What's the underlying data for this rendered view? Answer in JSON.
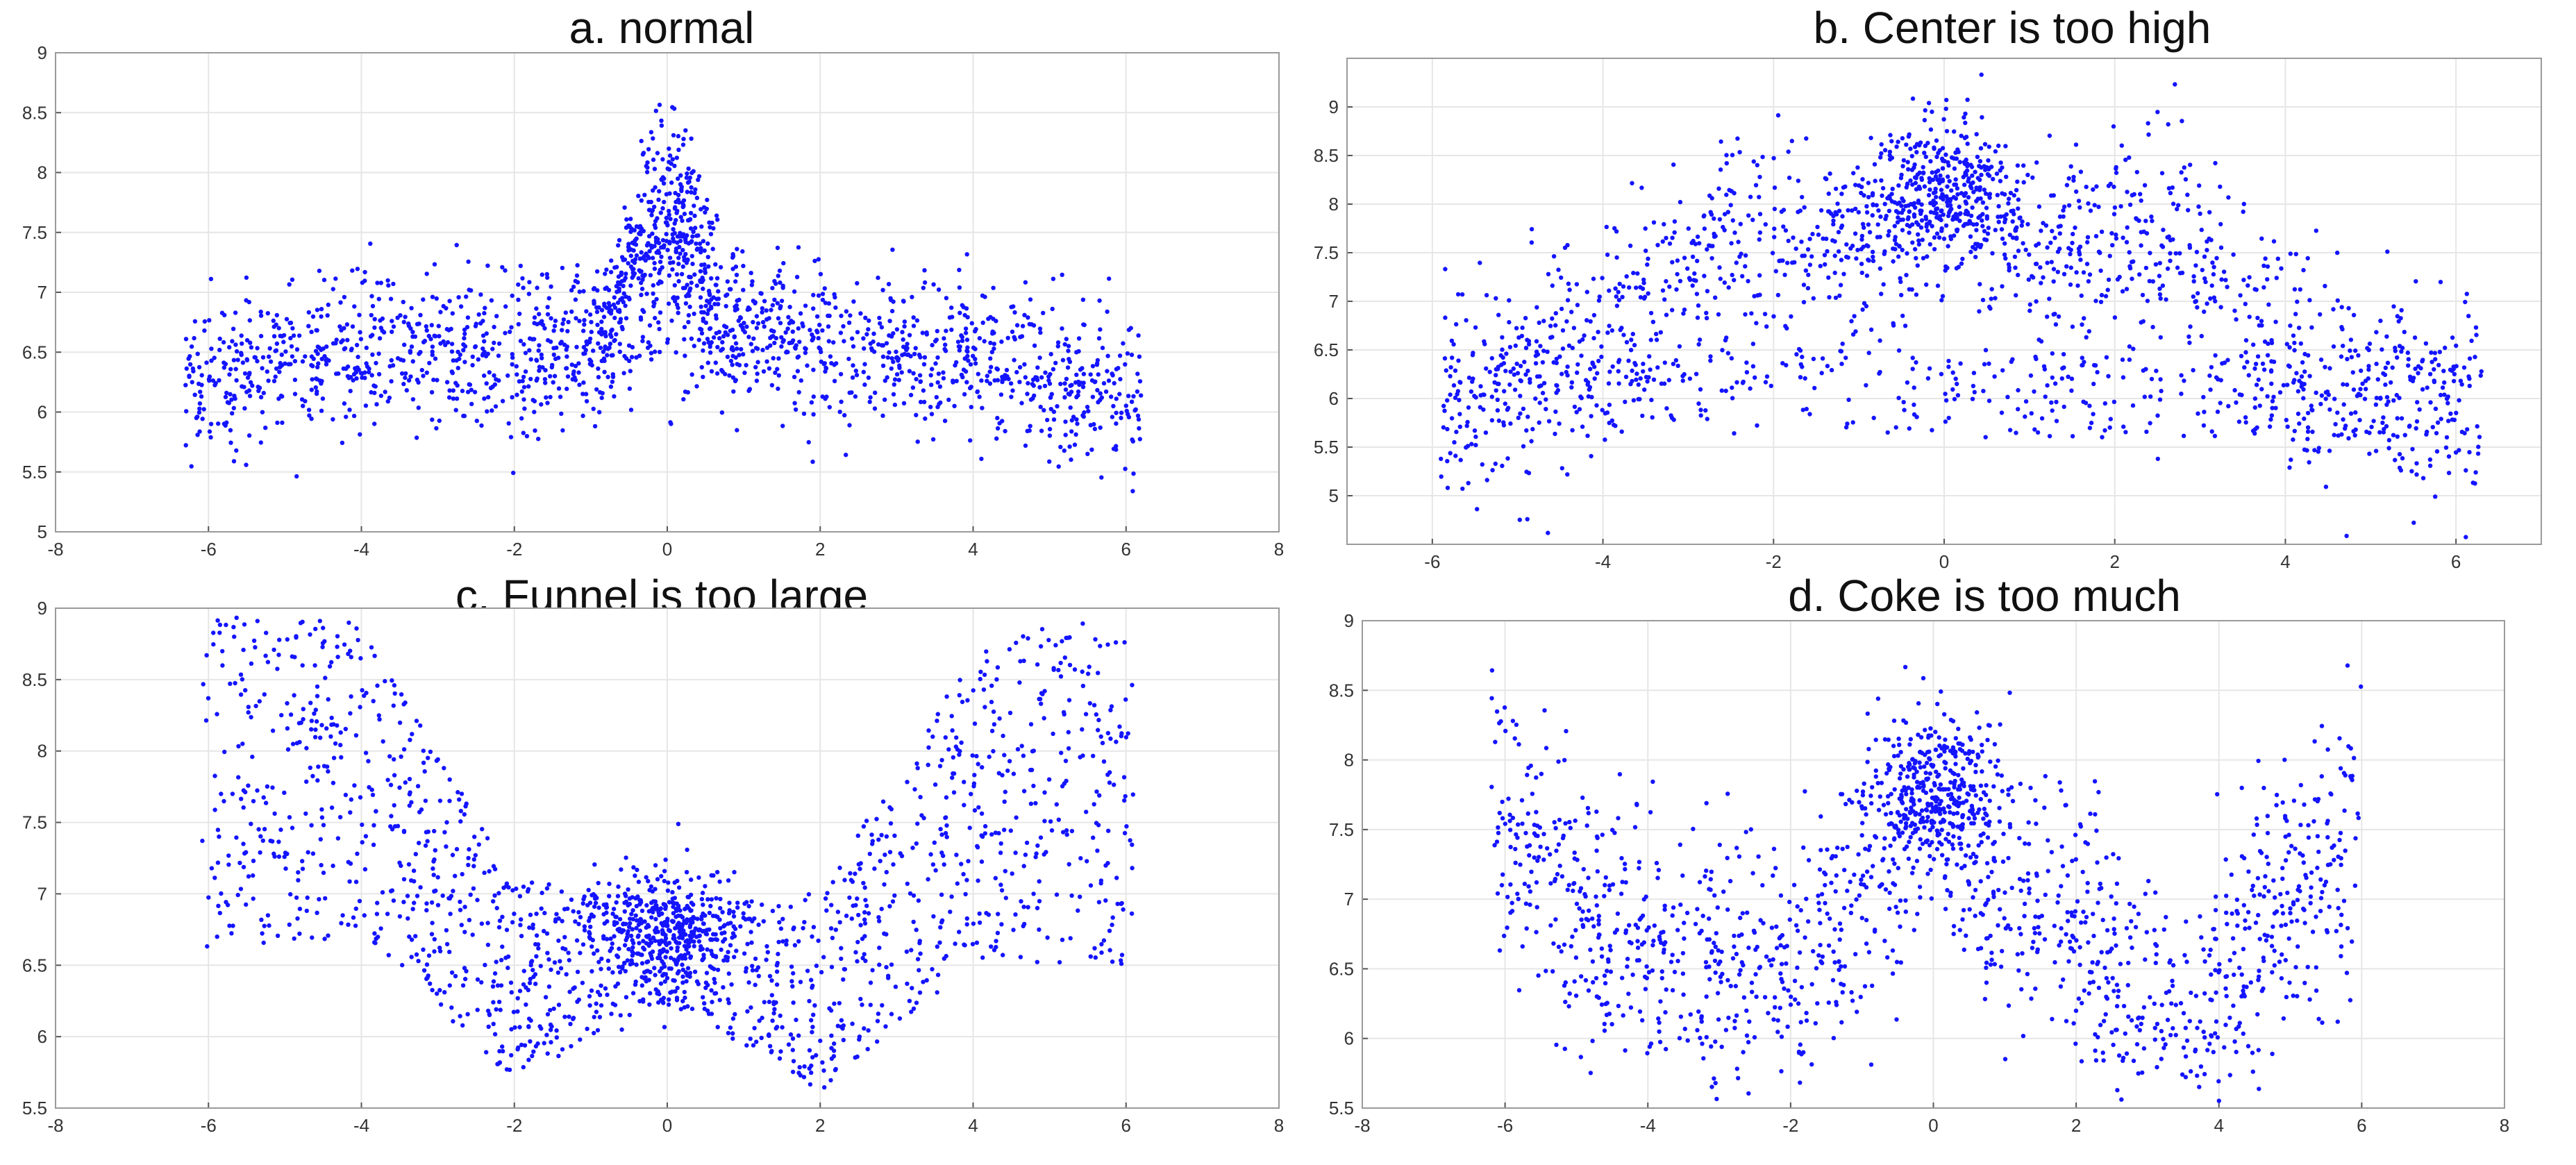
{
  "figure": {
    "background": "#ffffff",
    "point_color": "#1414ff",
    "grid_color": "#e6e6e6"
  },
  "chart_data": [
    {
      "id": "a",
      "type": "scatter",
      "title": "a. normal",
      "xlabel": "",
      "ylabel": "",
      "xlim": [
        -8,
        8
      ],
      "ylim": [
        5,
        9
      ],
      "xticks": [
        -8,
        -6,
        -4,
        -2,
        0,
        2,
        4,
        6,
        8
      ],
      "yticks": [
        5,
        5.5,
        6,
        6.5,
        7,
        7.5,
        8,
        8.5,
        9
      ],
      "ytick_labels": [
        "5",
        "5.5",
        "6",
        "6.5",
        "7",
        "7.5",
        "8",
        "8.5",
        "9"
      ],
      "grid": true,
      "point_count": 2000,
      "x_range": [
        -6.3,
        6.2
      ],
      "band": {
        "base_y": 6.45,
        "spread": 0.45
      },
      "peak": {
        "x": 0.0,
        "height": 8.5,
        "width": 0.55
      },
      "profile": [
        [
          -6.3,
          6.2
        ],
        [
          -4,
          6.55
        ],
        [
          -2,
          6.5
        ],
        [
          -0.8,
          6.7
        ],
        [
          0,
          7.7
        ],
        [
          0.8,
          6.9
        ],
        [
          2,
          6.5
        ],
        [
          4,
          6.45
        ],
        [
          6.2,
          6.1
        ]
      ],
      "seed": 11
    },
    {
      "id": "b",
      "type": "scatter",
      "title": "b. Center is too high",
      "xlabel": "",
      "ylabel": "",
      "xlim": [
        -7,
        7
      ],
      "ylim": [
        4.5,
        9.5
      ],
      "xticks": [
        -6,
        -4,
        -2,
        0,
        2,
        4,
        6
      ],
      "yticks": [
        5,
        5.5,
        6,
        6.5,
        7,
        7.5,
        8,
        8.5,
        9
      ],
      "ytick_labels": [
        "5",
        "5.5",
        "6",
        "6.5",
        "7",
        "7.5",
        "8",
        "8.5",
        "9"
      ],
      "grid": true,
      "point_count": 2000,
      "x_range": [
        -5.9,
        6.3
      ],
      "profile": [
        [
          -5.9,
          5.9
        ],
        [
          -4,
          6.6
        ],
        [
          -2.5,
          7.7
        ],
        [
          -1,
          7.4
        ],
        [
          0,
          8.1
        ],
        [
          1,
          7.4
        ],
        [
          2.2,
          7.6
        ],
        [
          3,
          7.5
        ],
        [
          4,
          6.4
        ],
        [
          6.2,
          5.9
        ]
      ],
      "spread": 0.55,
      "seed": 23
    },
    {
      "id": "c",
      "type": "scatter",
      "title": "c. Funnel is too large",
      "xlabel": "",
      "ylabel": "",
      "xlim": [
        -8,
        8
      ],
      "ylim": [
        5.5,
        9
      ],
      "xticks": [
        -8,
        -6,
        -4,
        -2,
        0,
        2,
        4,
        6,
        8
      ],
      "yticks": [
        5.5,
        6,
        6.5,
        7,
        7.5,
        8,
        8.5,
        9
      ],
      "ytick_labels": [
        "5.5",
        "6",
        "6.5",
        "7",
        "7.5",
        "8",
        "8.5",
        "9"
      ],
      "grid": true,
      "point_count": 1900,
      "x_range": [
        -6.1,
        6.1
      ],
      "profile": [
        [
          -6.1,
          7.95
        ],
        [
          -4,
          7.8
        ],
        [
          -2,
          6.4
        ],
        [
          0,
          6.6
        ],
        [
          2,
          6.3
        ],
        [
          4,
          7.6
        ],
        [
          6.1,
          7.95
        ]
      ],
      "spread": 0.55,
      "seed": 37
    },
    {
      "id": "d",
      "type": "scatter",
      "title": "d. Coke is too much",
      "xlabel": "",
      "ylabel": "",
      "xlim": [
        -8,
        8
      ],
      "ylim": [
        5.5,
        9
      ],
      "xticks": [
        -8,
        -6,
        -4,
        -2,
        0,
        2,
        4,
        6,
        8
      ],
      "yticks": [
        5.5,
        6,
        6.5,
        7,
        7.5,
        8,
        8.5,
        9
      ],
      "ytick_labels": [
        "5.5",
        "6",
        "6.5",
        "7",
        "7.5",
        "8",
        "8.5",
        "9"
      ],
      "grid": true,
      "point_count": 1700,
      "x_range": [
        -6.2,
        6.0
      ],
      "profile": [
        [
          -6.2,
          7.6
        ],
        [
          -4,
          6.6
        ],
        [
          -2,
          6.5
        ],
        [
          -0.6,
          7.2
        ],
        [
          0,
          7.8
        ],
        [
          0.6,
          7.2
        ],
        [
          2,
          6.7
        ],
        [
          3.5,
          6.1
        ],
        [
          5,
          7.0
        ],
        [
          6,
          7.6
        ]
      ],
      "spread": 0.5,
      "seed": 53
    }
  ]
}
